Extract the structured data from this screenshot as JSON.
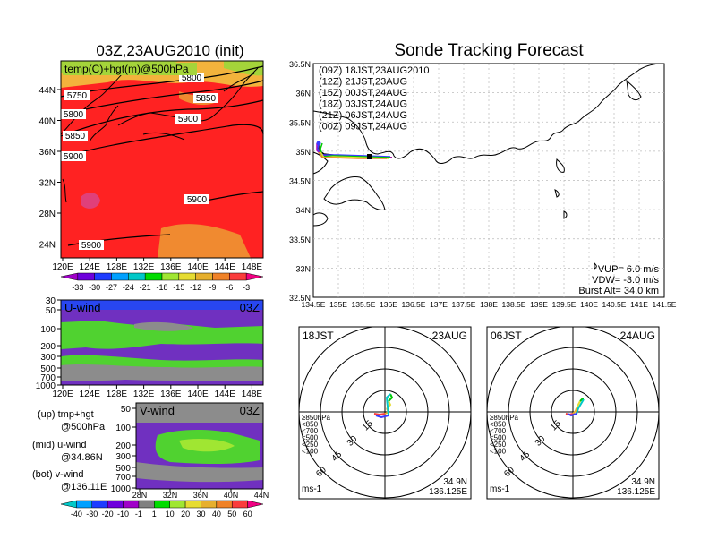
{
  "map_panel": {
    "title": "03Z,23AUG2010 (init)",
    "field_label": "temp(C)+hgt(m)@500hPa",
    "lat_labels": [
      "44N",
      "40N",
      "36N",
      "32N",
      "28N",
      "24N"
    ],
    "lon_labels": [
      "120E",
      "124E",
      "128E",
      "132E",
      "136E",
      "140E",
      "144E",
      "148E"
    ],
    "contour_labels": [
      "5800",
      "5750",
      "5850",
      "5800",
      "5900",
      "5850",
      "5900",
      "5900",
      "5900"
    ],
    "colorbar_labels": [
      "-33",
      "-30",
      "-27",
      "-24",
      "-21",
      "-18",
      "-15",
      "-12",
      "-9",
      "-6",
      "-3"
    ],
    "colorbar_colors": [
      "#a000c8",
      "#6e00dc",
      "#1e3cff",
      "#00a0ff",
      "#00c8c8",
      "#00dc00",
      "#a0e632",
      "#e6dc32",
      "#e6af2d",
      "#f08228",
      "#fa3c3c",
      "#f00082"
    ]
  },
  "u_wind_panel": {
    "title": "U-wind",
    "time": "03Z",
    "y_labels": [
      "30",
      "50",
      "100",
      "200",
      "300",
      "500",
      "700",
      "1000"
    ],
    "x_labels": [
      "120E",
      "124E",
      "128E",
      "132E",
      "136E",
      "140E",
      "144E",
      "148E"
    ]
  },
  "v_wind_panel": {
    "title": "V-wind",
    "time": "03Z",
    "y_labels": [
      "50",
      "100",
      "200",
      "300",
      "500",
      "700",
      "1000"
    ],
    "x_labels": [
      "28N",
      "32N",
      "36N",
      "40N",
      "44N"
    ]
  },
  "notes": {
    "up_line1": "(up)  tmp+hgt",
    "up_line2": "@500hPa",
    "mid_line1": "(mid)  u-wind",
    "mid_line2": "@34.86N",
    "bot_line1": "(bot)  v-wind",
    "bot_line2": "@136.11E"
  },
  "wind_colorbar": {
    "labels": [
      "-40",
      "-30",
      "-20",
      "-10",
      "-1",
      "1",
      "10",
      "20",
      "30",
      "40",
      "50",
      "60"
    ],
    "colors": [
      "#00c8c8",
      "#00a0ff",
      "#1e3cff",
      "#6e00dc",
      "#a000c8",
      "#808080",
      "#00dc00",
      "#a0e632",
      "#e6dc32",
      "#e6af2d",
      "#f08228",
      "#fa3c3c",
      "#f00082"
    ]
  },
  "sonde": {
    "title": "Sonde Tracking Forecast",
    "legend": [
      {
        "text": "(09Z)  18JST,23AUG2010",
        "color": "#000000"
      },
      {
        "text": "(12Z)  21JST,23AUG",
        "color": "#b400b4"
      },
      {
        "text": "(15Z)  00JST,24AUG",
        "color": "#3c3cff"
      },
      {
        "text": "(18Z)  03JST,24AUG",
        "color": "#00c800"
      },
      {
        "text": "(21Z)  06JST,24AUG",
        "color": "#e6dc32"
      },
      {
        "text": "(00Z)  09JST,24AUG",
        "color": "#f08228"
      }
    ],
    "lat_labels": [
      "36.5N",
      "36N",
      "35.5N",
      "35N",
      "34.5N",
      "34N",
      "33.5N",
      "33N",
      "32.5N"
    ],
    "lon_labels": [
      "134.5E",
      "135E",
      "135.5E",
      "136E",
      "136.5E",
      "137E",
      "137.5E",
      "138E",
      "138.5E",
      "139E",
      "139.5E",
      "140E",
      "140.5E",
      "141E",
      "141.5E"
    ],
    "params": [
      "VUP=  6.0  m/s",
      "VDW= -3.0  m/s",
      "Burst Alt=  34.0  km"
    ]
  },
  "hodo_left": {
    "time_label": "18JST",
    "date_label": "23AUG",
    "ring_labels": [
      "15",
      "30",
      "45",
      "60"
    ],
    "pressure_legend": [
      {
        "text": "≥850hPa",
        "color": "#fa3c3c"
      },
      {
        "text": "<850",
        "color": "#e6af2d"
      },
      {
        "text": "<700",
        "color": "#e6dc32"
      },
      {
        "text": "<500",
        "color": "#00c800"
      },
      {
        "text": "<250",
        "color": "#00c8c8"
      },
      {
        "text": "<100",
        "color": "#3c3cff"
      }
    ],
    "unit": "ms-1",
    "lat": "34.9N",
    "lon": "136.125E"
  },
  "hodo_right": {
    "time_label": "06JST",
    "date_label": "24AUG",
    "ring_labels": [
      "15",
      "30",
      "45",
      "60"
    ],
    "pressure_legend": [
      {
        "text": "≥850hPa",
        "color": "#fa3c3c"
      },
      {
        "text": "<850",
        "color": "#e6af2d"
      },
      {
        "text": "<700",
        "color": "#e6dc32"
      },
      {
        "text": "<500",
        "color": "#00c800"
      },
      {
        "text": "<250",
        "color": "#00c8c8"
      },
      {
        "text": "<100",
        "color": "#3c3cff"
      }
    ],
    "unit": "ms-1",
    "lat": "34.9N",
    "lon": "136.125E"
  }
}
